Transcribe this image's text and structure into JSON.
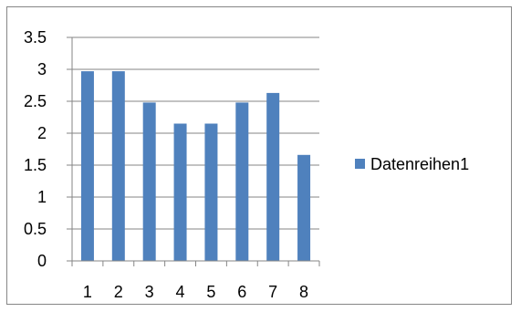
{
  "chart_data": {
    "type": "bar",
    "categories": [
      "1",
      "2",
      "3",
      "4",
      "5",
      "6",
      "7",
      "8"
    ],
    "series": [
      {
        "name": "Datenreihen1",
        "values": [
          2.97,
          2.97,
          2.48,
          2.15,
          2.15,
          2.48,
          2.63,
          1.66
        ],
        "color": "#4f81bd"
      }
    ],
    "ylim": [
      0,
      3.5
    ],
    "yticks": [
      "0",
      "0.5",
      "1",
      "1.5",
      "2",
      "2.5",
      "3",
      "3.5"
    ],
    "grid": true,
    "legend_position": "right"
  }
}
